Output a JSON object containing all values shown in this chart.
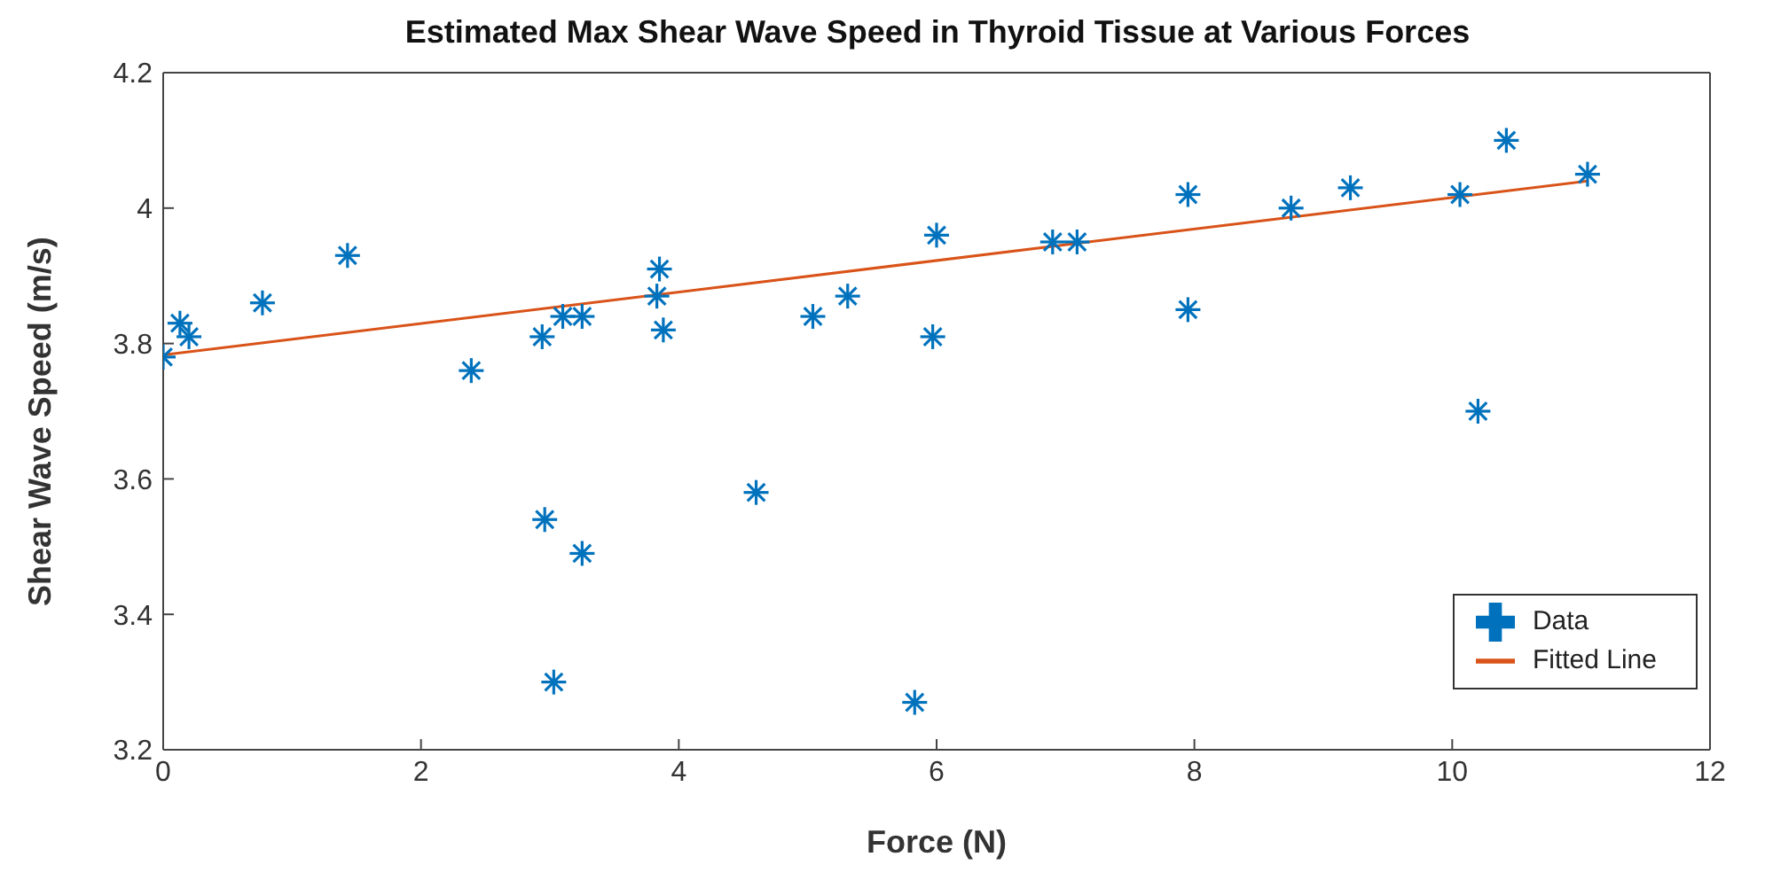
{
  "chart_data": {
    "type": "scatter",
    "title": "Estimated Max Shear Wave Speed in Thyroid Tissue at Various Forces",
    "xlabel": "Force (N)",
    "ylabel": "Shear Wave Speed (m/s)",
    "xlim": [
      0,
      12
    ],
    "xticks": [
      0,
      2,
      4,
      6,
      8,
      10,
      12
    ],
    "ylim": [
      3.2,
      4.2
    ],
    "yticks": [
      3.2,
      3.4,
      3.6,
      3.8,
      4,
      4.2
    ],
    "grid": false,
    "legend": "bottom right",
    "marker": "cross",
    "series": [
      {
        "name": "Data",
        "color": "#0072bd",
        "x": [
          0,
          0.13,
          0.2,
          0.77,
          1.43,
          2.39,
          2.94,
          3.1,
          3.25,
          3.85,
          3.83,
          3.88,
          5.04,
          5.31,
          5.97,
          6.0,
          4.6,
          2.96,
          3.25,
          3.03,
          5.83,
          6.9,
          7.09,
          7.95,
          7.95,
          8.75,
          9.21,
          10.06,
          10.42,
          10.2,
          11.05
        ],
        "values": [
          3.78,
          3.83,
          3.81,
          3.86,
          3.93,
          3.76,
          3.81,
          3.84,
          3.84,
          3.91,
          3.87,
          3.82,
          3.84,
          3.87,
          3.81,
          3.96,
          3.58,
          3.54,
          3.49,
          3.3,
          3.27,
          3.95,
          3.95,
          4.02,
          3.85,
          4.0,
          4.03,
          4.02,
          4.1,
          3.7,
          4.05
        ]
      },
      {
        "name": "Fitted Line",
        "type": "line",
        "color": "#d95319",
        "line_style": "solid",
        "x": [
          0,
          11.05
        ],
        "values": [
          3.783,
          4.04
        ]
      }
    ]
  }
}
